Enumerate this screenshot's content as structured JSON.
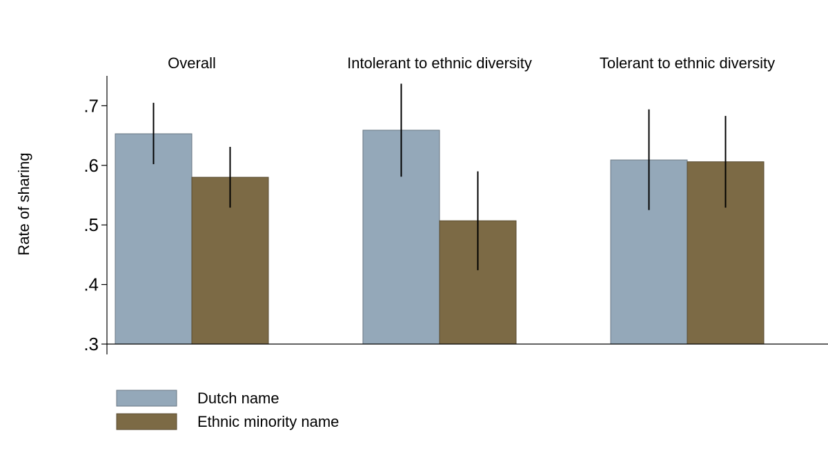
{
  "chart_data": {
    "type": "bar",
    "ylabel": "Rate of sharing",
    "ylim": [
      0.3,
      0.75
    ],
    "yticks": [
      {
        "value": 0.3,
        "label": ".3"
      },
      {
        "value": 0.4,
        "label": ".4"
      },
      {
        "value": 0.5,
        "label": ".5"
      },
      {
        "value": 0.6,
        "label": ".6"
      },
      {
        "value": 0.7,
        "label": ".7"
      }
    ],
    "categories": [
      "Overall",
      "Intolerant to ethnic diversity",
      "Tolerant to ethnic diversity"
    ],
    "series": [
      {
        "name": "Dutch name",
        "color": "#94a8b9",
        "values": [
          0.653,
          0.659,
          0.609
        ],
        "ci_low": [
          0.602,
          0.581,
          0.525
        ],
        "ci_high": [
          0.705,
          0.737,
          0.694
        ]
      },
      {
        "name": "Ethnic minority name",
        "color": "#7c6a45",
        "values": [
          0.58,
          0.507,
          0.606
        ],
        "ci_low": [
          0.529,
          0.424,
          0.529
        ],
        "ci_high": [
          0.631,
          0.59,
          0.683
        ]
      }
    ],
    "grid": false,
    "legend_position": "bottom-left"
  }
}
